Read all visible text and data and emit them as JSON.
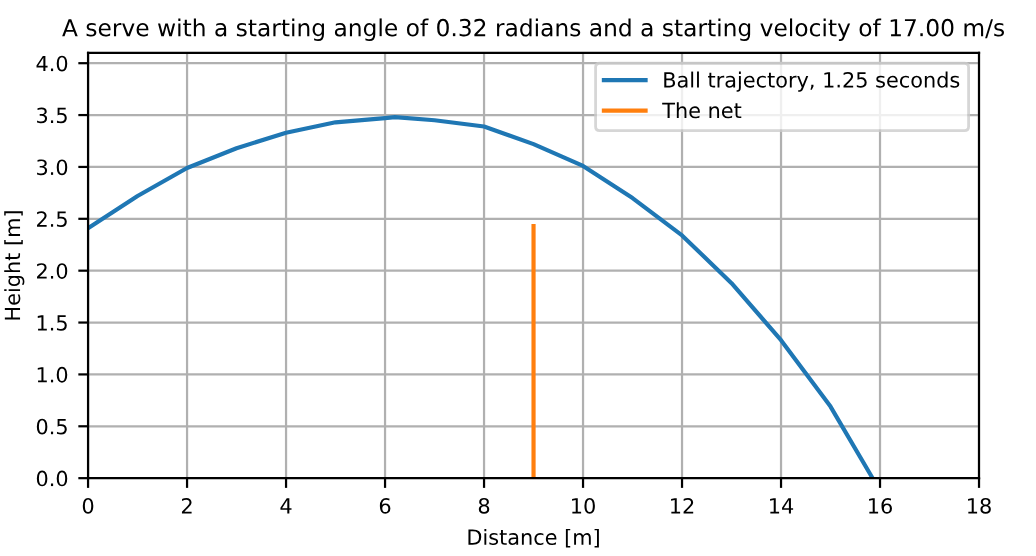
{
  "chart_data": {
    "type": "line",
    "title": "A serve with a starting angle of 0.32 radians and a starting velocity of 17.00 m/s",
    "xlabel": "Distance [m]",
    "ylabel": "Height [m]",
    "series": [
      {
        "name": "Ball trajectory, 1.25 seconds",
        "color": "#1f77b4",
        "x": [
          0,
          1,
          2,
          3,
          4,
          5,
          6,
          6.2,
          7,
          8,
          9,
          10,
          11,
          12,
          13,
          14,
          15,
          15.85
        ],
        "values": [
          2.41,
          2.72,
          2.99,
          3.18,
          3.33,
          3.43,
          3.47,
          3.48,
          3.45,
          3.39,
          3.22,
          3.01,
          2.7,
          2.34,
          1.88,
          1.33,
          0.69,
          0
        ]
      },
      {
        "name": "The net",
        "color": "#ff7f0e",
        "x": [
          9,
          9
        ],
        "values": [
          0,
          2.43
        ]
      }
    ],
    "xlim": [
      0,
      18
    ],
    "xticks": [
      0,
      2,
      4,
      6,
      8,
      10,
      12,
      14,
      16,
      18
    ],
    "ylim": [
      0,
      4.1
    ],
    "yticks": [
      {
        "value": 0,
        "label": "0.0"
      },
      {
        "value": 0.5,
        "label": "0.5"
      },
      {
        "value": 1,
        "label": "1.0"
      },
      {
        "value": 1.5,
        "label": "1.5"
      },
      {
        "value": 2,
        "label": "2.0"
      },
      {
        "value": 2.5,
        "label": "2.5"
      },
      {
        "value": 3,
        "label": "3.0"
      },
      {
        "value": 3.5,
        "label": "3.5"
      },
      {
        "value": 4,
        "label": "4.0"
      }
    ],
    "grid": true,
    "legend": "top right"
  }
}
